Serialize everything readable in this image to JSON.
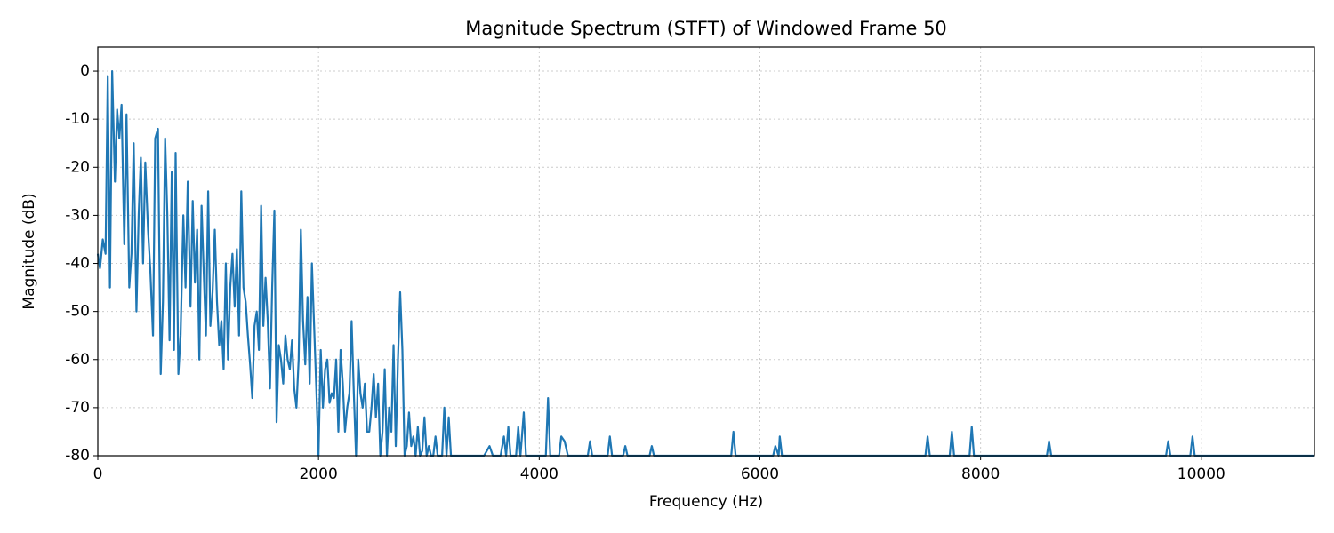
{
  "chart_data": {
    "type": "line",
    "title": "Magnitude Spectrum (STFT) of Windowed Frame 50",
    "x_label": "Frequency (Hz)",
    "y_label": "Magnitude (dB)",
    "color": "#1f77b4",
    "grid": true,
    "xlim": [
      0,
      11025
    ],
    "xticks": [
      0,
      2000,
      4000,
      6000,
      8000,
      10000
    ],
    "ylim": [
      -80,
      5
    ],
    "yticks": [
      0,
      -10,
      -20,
      -30,
      -40,
      -50,
      -60,
      -70,
      -80
    ],
    "x": [
      0,
      20,
      45,
      70,
      90,
      110,
      130,
      155,
      175,
      195,
      215,
      240,
      260,
      285,
      305,
      325,
      350,
      370,
      390,
      410,
      430,
      455,
      475,
      500,
      520,
      545,
      570,
      590,
      610,
      630,
      650,
      670,
      690,
      705,
      730,
      750,
      775,
      795,
      815,
      840,
      860,
      880,
      900,
      920,
      940,
      960,
      980,
      1000,
      1020,
      1040,
      1060,
      1080,
      1100,
      1120,
      1140,
      1160,
      1180,
      1200,
      1220,
      1240,
      1260,
      1280,
      1300,
      1320,
      1340,
      1360,
      1380,
      1400,
      1420,
      1440,
      1460,
      1480,
      1500,
      1520,
      1540,
      1560,
      1580,
      1600,
      1620,
      1640,
      1660,
      1680,
      1700,
      1720,
      1740,
      1760,
      1780,
      1800,
      1820,
      1840,
      1860,
      1880,
      1900,
      1920,
      1940,
      1960,
      1980,
      2000,
      2020,
      2040,
      2060,
      2080,
      2100,
      2120,
      2140,
      2160,
      2180,
      2200,
      2220,
      2240,
      2260,
      2280,
      2300,
      2320,
      2340,
      2360,
      2380,
      2400,
      2420,
      2440,
      2460,
      2480,
      2500,
      2520,
      2540,
      2560,
      2580,
      2600,
      2620,
      2640,
      2660,
      2680,
      2700,
      2720,
      2740,
      2760,
      2780,
      2800,
      2820,
      2840,
      2860,
      2880,
      2900,
      2920,
      2940,
      2960,
      2980,
      3000,
      3020,
      3040,
      3060,
      3080,
      3100,
      3120,
      3140,
      3160,
      3180,
      3200,
      3250,
      3500,
      3550,
      3580,
      3650,
      3680,
      3700,
      3720,
      3740,
      3790,
      3810,
      3830,
      3860,
      3880,
      4060,
      4080,
      4100,
      4180,
      4200,
      4230,
      4260,
      4440,
      4460,
      4480,
      4620,
      4640,
      4660,
      4760,
      4780,
      4800,
      5000,
      5020,
      5040,
      5740,
      5760,
      5780,
      6120,
      6140,
      6170,
      6180,
      6200,
      7500,
      7520,
      7540,
      7720,
      7740,
      7760,
      7900,
      7920,
      7940,
      8600,
      8620,
      8640,
      9680,
      9700,
      9720,
      9900,
      9920,
      9940,
      11025
    ],
    "values": [
      -38,
      -41,
      -35,
      -38,
      -1,
      -45,
      0,
      -23,
      -8,
      -14,
      -7,
      -36,
      -9,
      -45,
      -38,
      -15,
      -50,
      -30,
      -18,
      -40,
      -19,
      -33,
      -41,
      -55,
      -14,
      -12,
      -63,
      -48,
      -14,
      -30,
      -56,
      -21,
      -58,
      -17,
      -63,
      -55,
      -30,
      -45,
      -23,
      -49,
      -27,
      -44,
      -33,
      -60,
      -28,
      -42,
      -55,
      -25,
      -53,
      -46,
      -33,
      -48,
      -57,
      -52,
      -62,
      -40,
      -60,
      -45,
      -38,
      -49,
      -37,
      -55,
      -25,
      -45,
      -48,
      -55,
      -61,
      -68,
      -53,
      -50,
      -58,
      -28,
      -53,
      -43,
      -52,
      -66,
      -45,
      -29,
      -73,
      -57,
      -60,
      -65,
      -55,
      -60,
      -62,
      -56,
      -66,
      -70,
      -60,
      -33,
      -52,
      -61,
      -47,
      -65,
      -40,
      -53,
      -66,
      -80,
      -58,
      -70,
      -62,
      -60,
      -69,
      -67,
      -68,
      -60,
      -75,
      -58,
      -65,
      -75,
      -70,
      -67,
      -52,
      -67,
      -80,
      -60,
      -67,
      -70,
      -65,
      -75,
      -75,
      -70,
      -63,
      -72,
      -65,
      -80,
      -75,
      -62,
      -80,
      -70,
      -75,
      -57,
      -78,
      -60,
      -46,
      -58,
      -80,
      -78,
      -71,
      -78,
      -76,
      -80,
      -74,
      -80,
      -79,
      -72,
      -80,
      -78,
      -80,
      -80,
      -76,
      -80,
      -80,
      -80,
      -70,
      -80,
      -72,
      -80,
      -80,
      -80,
      -78,
      -80,
      -80,
      -76,
      -80,
      -74,
      -80,
      -80,
      -74,
      -80,
      -71,
      -80,
      -80,
      -68,
      -80,
      -80,
      -76,
      -77,
      -80,
      -80,
      -77,
      -80,
      -80,
      -76,
      -80,
      -80,
      -78,
      -80,
      -80,
      -78,
      -80,
      -80,
      -75,
      -80,
      -80,
      -78,
      -80,
      -76,
      -80,
      -80,
      -76,
      -80,
      -80,
      -75,
      -80,
      -80,
      -74,
      -80,
      -80,
      -77,
      -80,
      -80,
      -77,
      -80,
      -80,
      -76,
      -80,
      -80
    ]
  }
}
